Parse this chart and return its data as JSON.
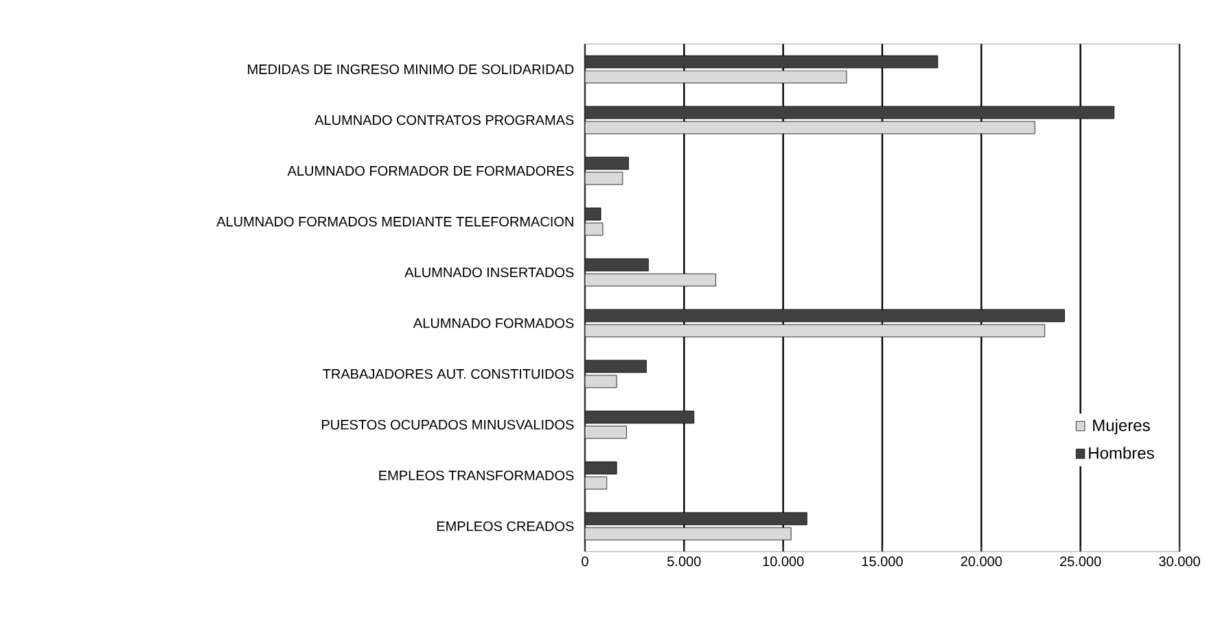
{
  "chart_data": {
    "type": "bar",
    "orientation": "horizontal",
    "categories": [
      "MEDIDAS DE INGRESO MINIMO DE SOLIDARIDAD",
      "ALUMNADO CONTRATOS PROGRAMAS",
      "ALUMNADO FORMADOR DE FORMADORES",
      "ALUMNADO FORMADOS MEDIANTE TELEFORMACION",
      "ALUMNADO INSERTADOS",
      "ALUMNADO FORMADOS",
      "TRABAJADORES AUT. CONSTITUIDOS",
      "PUESTOS OCUPADOS MINUSVALIDOS",
      "EMPLEOS TRANSFORMADOS",
      "EMPLEOS CREADOS"
    ],
    "series": [
      {
        "name": "Mujeres",
        "color": "#d9d9d9",
        "values": [
          13200,
          22700,
          1900,
          900,
          6600,
          23200,
          1600,
          2100,
          1100,
          10400
        ]
      },
      {
        "name": "Hombres",
        "color": "#404040",
        "values": [
          17800,
          26700,
          2200,
          800,
          3200,
          24200,
          3100,
          5500,
          1600,
          11200
        ]
      }
    ],
    "xlim": [
      0,
      30000
    ],
    "xticks": [
      0,
      {
        "value": 5000,
        "label": "5.000"
      },
      {
        "value": 10000,
        "label": "10.000"
      },
      {
        "value": 15000,
        "label": "15.000"
      },
      {
        "value": 20000,
        "label": "20.000"
      },
      {
        "value": 25000,
        "label": "25.000"
      },
      {
        "value": 30000,
        "label": "30.000"
      }
    ],
    "grid": "x",
    "legend": "right"
  }
}
